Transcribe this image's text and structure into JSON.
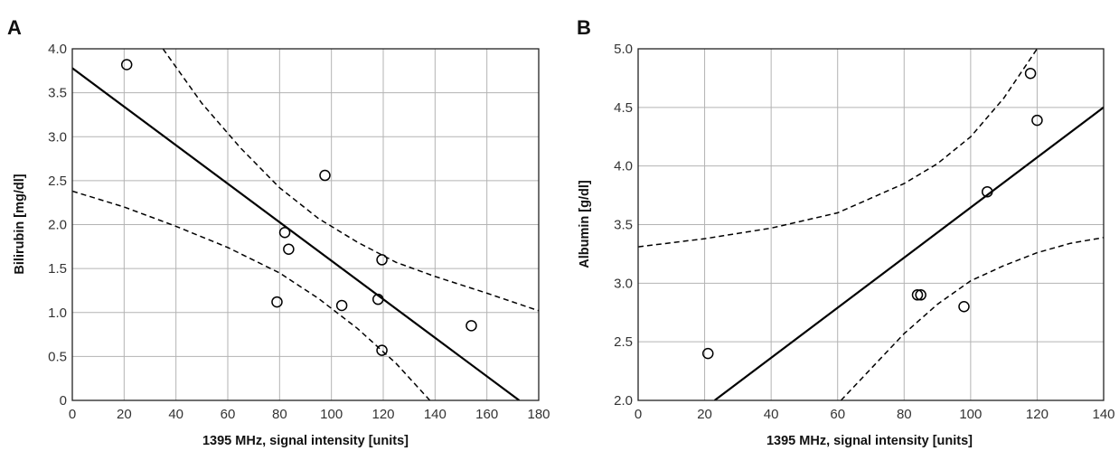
{
  "chart_data": [
    {
      "panel": "A",
      "type": "scatter",
      "xlabel": "1395 MHz, signal intensity [units]",
      "ylabel": "Bilirubin [mg/dl]",
      "xlim": [
        0,
        180
      ],
      "ylim": [
        0,
        4.0
      ],
      "xticks": [
        0,
        20,
        40,
        60,
        80,
        100,
        120,
        140,
        160,
        180
      ],
      "yticks": [
        0,
        0.5,
        1.0,
        1.5,
        2.0,
        2.5,
        3.0,
        3.5,
        4.0
      ],
      "xtick_labels": [
        "0",
        "20",
        "40",
        "60",
        "80",
        "100",
        "120",
        "140",
        "160",
        "180"
      ],
      "ytick_labels": [
        "0",
        "0.5",
        "1.0",
        "1.5",
        "2.0",
        "2.5",
        "3.0",
        "3.5",
        "4.0"
      ],
      "grid": true,
      "points": [
        {
          "x": 21,
          "y": 3.82
        },
        {
          "x": 79,
          "y": 1.12
        },
        {
          "x": 82,
          "y": 1.91
        },
        {
          "x": 83.5,
          "y": 1.72
        },
        {
          "x": 97.5,
          "y": 2.56
        },
        {
          "x": 104,
          "y": 1.08
        },
        {
          "x": 118,
          "y": 1.15
        },
        {
          "x": 119.5,
          "y": 1.6
        },
        {
          "x": 119.5,
          "y": 0.57
        },
        {
          "x": 154,
          "y": 0.85
        }
      ],
      "fit_line": {
        "x": [
          0,
          172.5
        ],
        "y": [
          3.78,
          0
        ]
      },
      "ci_upper": {
        "x": [
          35,
          50,
          65,
          80,
          95,
          110,
          125,
          140,
          160,
          180
        ],
        "y": [
          4.0,
          3.38,
          2.87,
          2.42,
          2.07,
          1.8,
          1.57,
          1.41,
          1.22,
          1.02
        ]
      },
      "ci_lower": {
        "x": [
          0,
          20,
          40,
          60,
          80,
          95,
          110,
          125,
          138
        ],
        "y": [
          2.38,
          2.2,
          1.98,
          1.74,
          1.45,
          1.16,
          0.82,
          0.42,
          0.0
        ]
      }
    },
    {
      "panel": "B",
      "type": "scatter",
      "xlabel": "1395 MHz, signal intensity [units]",
      "ylabel": "Albumin [g/dl]",
      "xlim": [
        0,
        140
      ],
      "ylim": [
        2.0,
        5.0
      ],
      "xticks": [
        0,
        20,
        40,
        60,
        80,
        100,
        120,
        140
      ],
      "yticks": [
        2.0,
        2.5,
        3.0,
        3.5,
        4.0,
        4.5,
        5.0
      ],
      "xtick_labels": [
        "0",
        "20",
        "40",
        "60",
        "80",
        "100",
        "120",
        "140"
      ],
      "ytick_labels": [
        "2.0",
        "2.5",
        "3.0",
        "3.5",
        "4.0",
        "4.5",
        "5.0"
      ],
      "grid": true,
      "points": [
        {
          "x": 21,
          "y": 2.4
        },
        {
          "x": 84,
          "y": 2.9
        },
        {
          "x": 85,
          "y": 2.9
        },
        {
          "x": 98,
          "y": 2.8
        },
        {
          "x": 105,
          "y": 3.78
        },
        {
          "x": 118,
          "y": 4.79
        },
        {
          "x": 120,
          "y": 4.39
        }
      ],
      "fit_line": {
        "x": [
          23,
          140
        ],
        "y": [
          2.0,
          4.5
        ]
      },
      "ci_upper": {
        "x": [
          0,
          20,
          40,
          60,
          80,
          90,
          100,
          110,
          120
        ],
        "y": [
          3.31,
          3.38,
          3.47,
          3.6,
          3.85,
          4.02,
          4.25,
          4.58,
          5.0
        ]
      },
      "ci_lower": {
        "x": [
          61,
          70,
          80,
          90,
          100,
          110,
          120,
          130,
          140
        ],
        "y": [
          2.0,
          2.27,
          2.57,
          2.82,
          3.02,
          3.15,
          3.26,
          3.34,
          3.39
        ]
      }
    }
  ]
}
